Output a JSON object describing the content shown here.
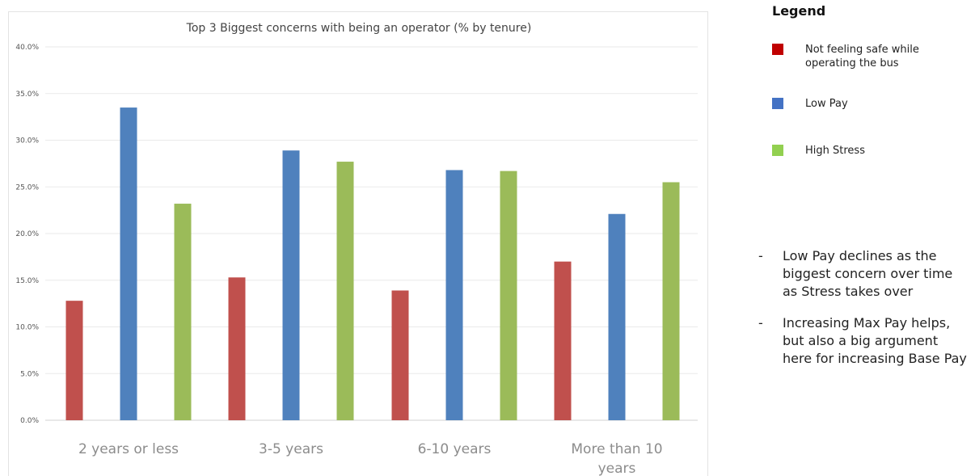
{
  "chart_data": {
    "type": "bar",
    "title": "Top 3 Biggest concerns with being an operator (% by tenure)",
    "categories": [
      "2 years or less",
      "3-5 years",
      "6-10 years",
      "More than 10 years"
    ],
    "series": [
      {
        "name": "Not feeling safe while operating the bus",
        "color": "#c0504d",
        "values": [
          12.8,
          15.3,
          13.9,
          17.0
        ]
      },
      {
        "name": "Low Pay",
        "color": "#4f81bd",
        "values": [
          33.5,
          28.9,
          26.8,
          22.1
        ]
      },
      {
        "name": "High Stress",
        "color": "#9bbb59",
        "values": [
          23.2,
          27.7,
          26.7,
          25.5
        ]
      }
    ],
    "ylim": [
      0,
      40
    ],
    "y_ticks": [
      "0.0%",
      "5.0%",
      "10.0%",
      "15.0%",
      "20.0%",
      "25.0%",
      "30.0%",
      "35.0%",
      "40.0%"
    ],
    "grid": true,
    "legend_position": "right"
  },
  "legend": {
    "title": "Legend",
    "items": [
      {
        "label": "Not feeling safe while operating the bus",
        "color": "#c00000"
      },
      {
        "label": "Low Pay",
        "color": "#4472c4"
      },
      {
        "label": "High Stress",
        "color": "#92d050"
      }
    ]
  },
  "notes": [
    "Low Pay declines as the biggest concern over time as Stress takes over",
    "Increasing Max Pay helps, but also a big argument here for increasing Base Pay"
  ],
  "note_bullet": "-"
}
